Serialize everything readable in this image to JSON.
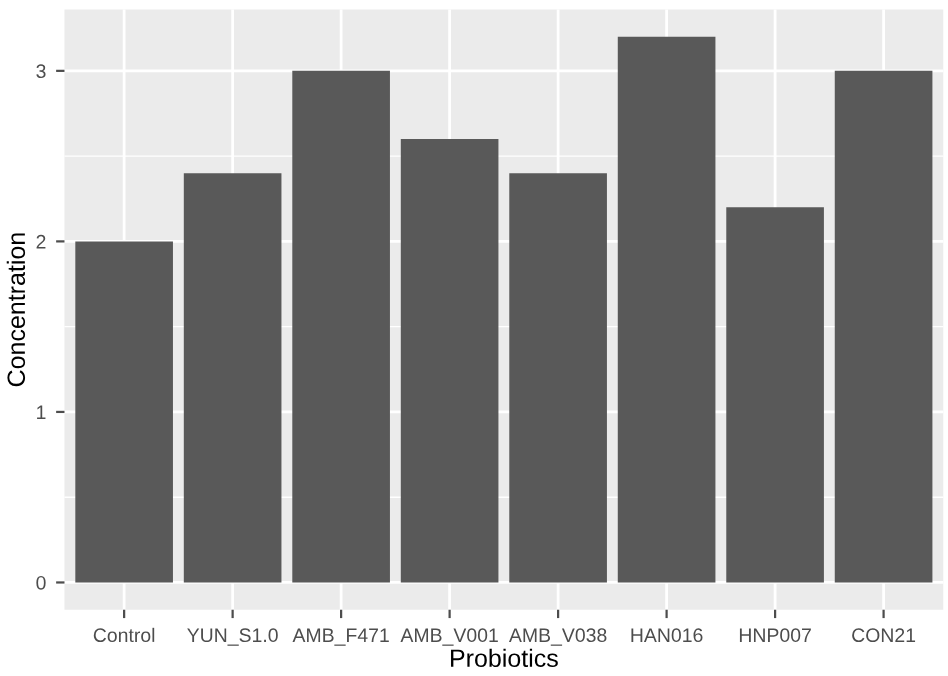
{
  "chart_data": {
    "type": "bar",
    "xlabel": "Probiotics",
    "ylabel": "Concentration",
    "categories": [
      "Control",
      "YUN_S1.0",
      "AMB_F471",
      "AMB_V001",
      "AMB_V038",
      "HAN016",
      "HNP007",
      "CON21"
    ],
    "values": [
      2,
      2.4,
      3,
      2.6,
      2.4,
      3.2,
      2.2,
      3
    ],
    "color": "#595959",
    "ylim": [
      -0.16,
      3.36
    ],
    "yticks": [
      0,
      1,
      2,
      3
    ],
    "grid": true
  }
}
